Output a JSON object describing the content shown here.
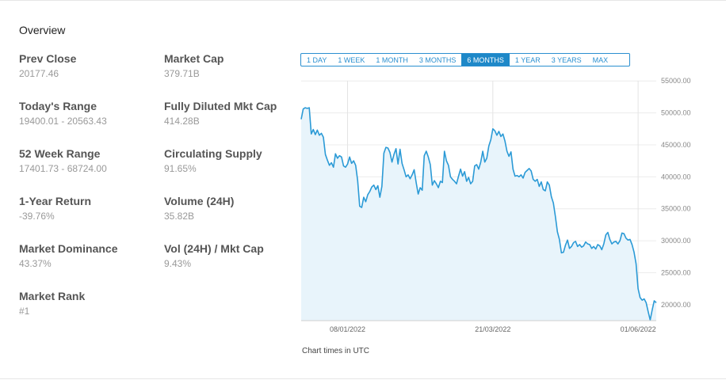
{
  "overview": {
    "title": "Overview",
    "stats": [
      {
        "label": "Prev Close",
        "value": "20177.46"
      },
      {
        "label": "Market Cap",
        "value": "379.71B"
      },
      {
        "label": "Today's Range",
        "value": "19400.01 - 20563.43"
      },
      {
        "label": "Fully Diluted Mkt Cap",
        "value": "414.28B"
      },
      {
        "label": "52 Week Range",
        "value": "17401.73 - 68724.00"
      },
      {
        "label": "Circulating Supply",
        "value": "91.65%"
      },
      {
        "label": "1-Year Return",
        "value": "-39.76%"
      },
      {
        "label": "Volume (24H)",
        "value": "35.82B"
      },
      {
        "label": "Market Dominance",
        "value": "43.37%"
      },
      {
        "label": "Vol (24H) / Mkt Cap",
        "value": "9.43%"
      },
      {
        "label": "Market Rank",
        "value": "#1"
      }
    ]
  },
  "range_selector": {
    "options": [
      "1 DAY",
      "1 WEEK",
      "1 MONTH",
      "3 MONTHS",
      "6 MONTHS",
      "1 YEAR",
      "3 YEARS",
      "MAX"
    ],
    "selected": "6 MONTHS"
  },
  "caption": "Chart times in UTC",
  "colors": {
    "line": "#2b9ad6",
    "fill": "#e8f4fb",
    "active": "#1e88c8"
  },
  "chart_data": {
    "type": "area",
    "title": "",
    "xlabel": "",
    "ylabel": "",
    "ylim": [
      17500,
      57500
    ],
    "yticks": [
      20000,
      25000,
      30000,
      35000,
      40000,
      45000,
      50000,
      55000
    ],
    "ytick_labels": [
      "20000.00",
      "25000.00",
      "30000.00",
      "35000.00",
      "40000.00",
      "45000.00",
      "50000.00",
      "55000.00"
    ],
    "xticks": [
      {
        "label": "08/01/2022",
        "index": 23
      },
      {
        "label": "21/03/2022",
        "index": 95
      },
      {
        "label": "01/06/2022",
        "index": 167
      }
    ],
    "values": [
      49000,
      50600,
      50800,
      50700,
      50800,
      46700,
      47400,
      46600,
      47300,
      46500,
      46800,
      46200,
      43500,
      42600,
      41800,
      42200,
      41500,
      43600,
      42900,
      43300,
      43100,
      41700,
      41500,
      42000,
      43100,
      42100,
      42500,
      41800,
      39400,
      35400,
      35200,
      36800,
      36100,
      37200,
      37700,
      38400,
      38700,
      38000,
      38600,
      36800,
      38500,
      43700,
      44600,
      44500,
      43800,
      42300,
      43500,
      44400,
      42000,
      44300,
      42100,
      41100,
      40000,
      40300,
      39700,
      40300,
      41100,
      39100,
      37300,
      38300,
      37900,
      43300,
      44000,
      43100,
      41900,
      38700,
      39400,
      38900,
      38300,
      39300,
      39100,
      44000,
      42500,
      41800,
      40000,
      39600,
      39300,
      38900,
      40100,
      41200,
      40100,
      40800,
      39300,
      39900,
      38900,
      39300,
      41700,
      41900,
      41200,
      42300,
      44000,
      42300,
      42900,
      44800,
      45800,
      47500,
      47200,
      46500,
      47100,
      46300,
      46700,
      45600,
      44000,
      43200,
      43900,
      41200,
      40100,
      40200,
      40000,
      40300,
      39800,
      40700,
      41000,
      41300,
      40900,
      39600,
      39300,
      39600,
      38500,
      39200,
      38000,
      37800,
      39200,
      38700,
      36900,
      35900,
      33800,
      31400,
      30200,
      28100,
      28200,
      29300,
      30100,
      28800,
      29100,
      29700,
      29900,
      29100,
      29400,
      29000,
      29200,
      29800,
      29500,
      29400,
      28800,
      29100,
      28700,
      29400,
      29200,
      28600,
      29500,
      30900,
      31300,
      30200,
      29500,
      29800,
      29900,
      29500,
      30000,
      31200,
      31100,
      30400,
      30100,
      30200,
      29400,
      28200,
      26400,
      22500,
      21100,
      20700,
      20900,
      20300,
      18900,
      17600,
      19200,
      20600,
      20300
    ]
  }
}
